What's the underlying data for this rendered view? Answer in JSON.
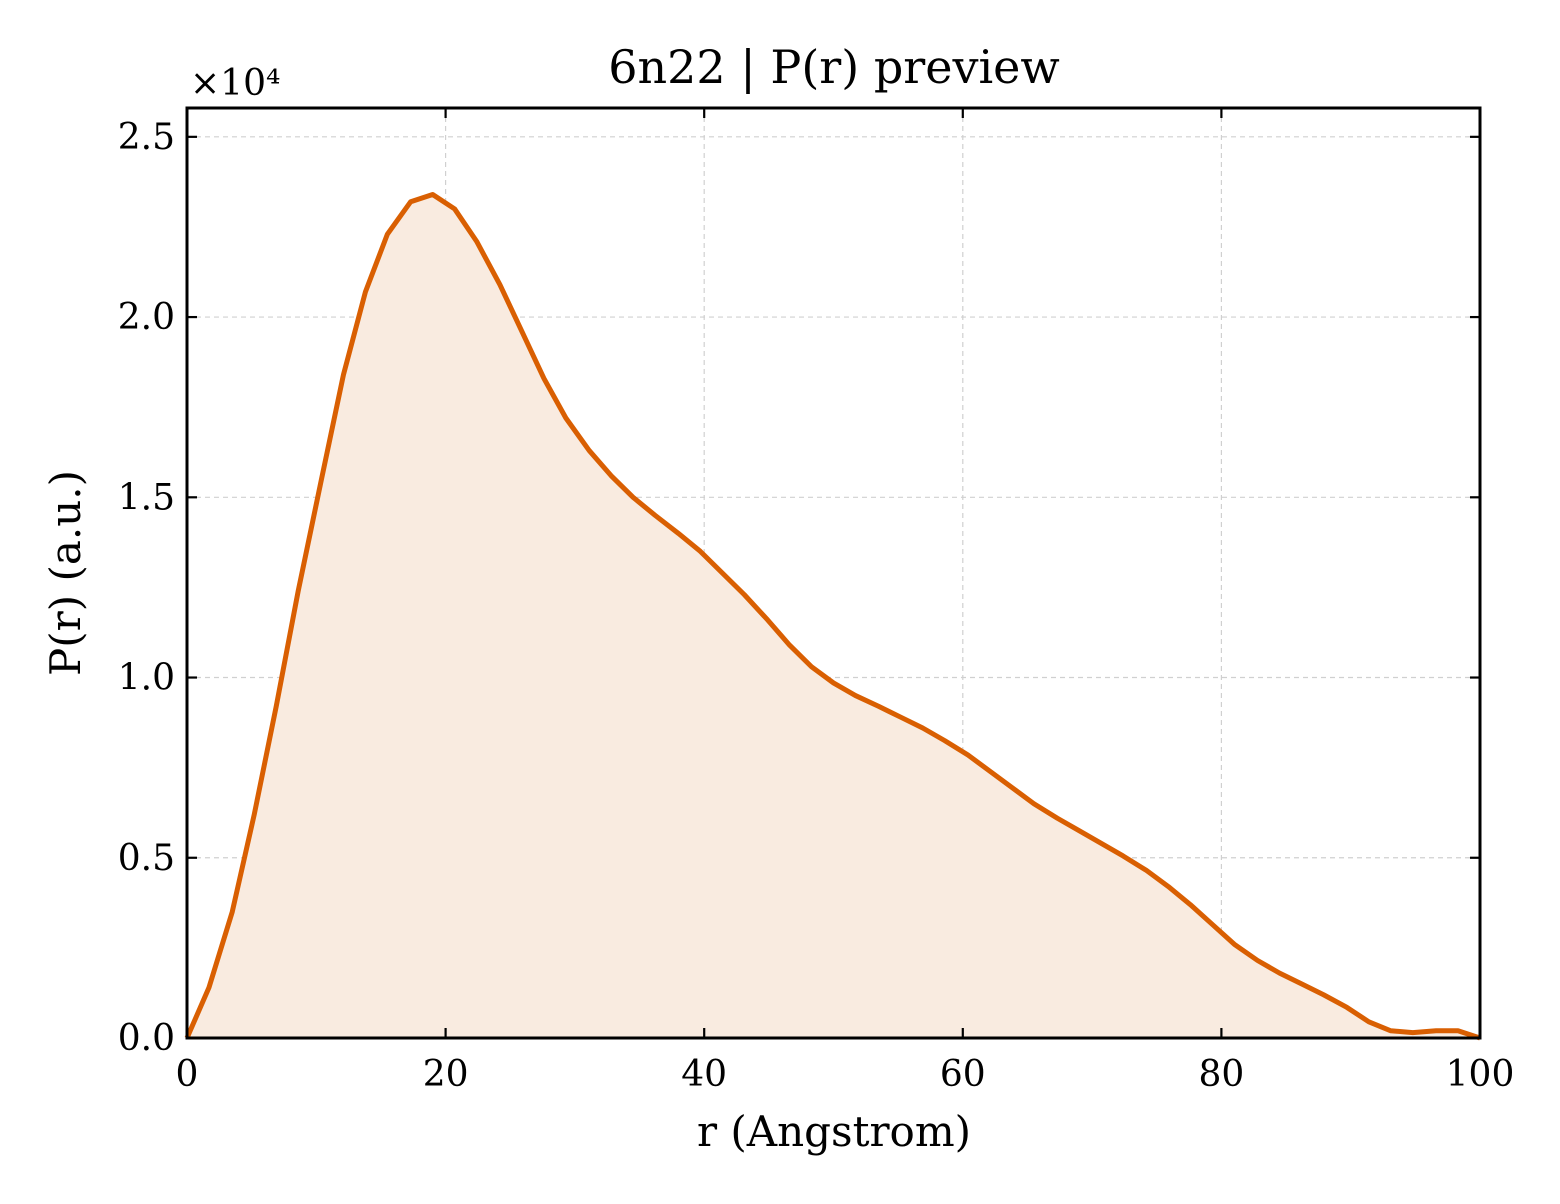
{
  "chart_data": {
    "type": "area",
    "title": "6n22 | P(r) preview",
    "xlabel": "r (Angstrom)",
    "ylabel": "P(r) (a.u.)",
    "y_multiplier_label": "×10⁴",
    "xlim": [
      0,
      100
    ],
    "ylim": [
      0,
      2.58
    ],
    "xticks": [
      0,
      20,
      40,
      60,
      80,
      100
    ],
    "xtick_labels": [
      "0",
      "20",
      "40",
      "60",
      "80",
      "100"
    ],
    "yticks": [
      0,
      0.5,
      1.0,
      1.5,
      2.0,
      2.5
    ],
    "ytick_labels": [
      "0.0",
      "0.5",
      "1.0",
      "1.5",
      "2.0",
      "2.5"
    ],
    "grid": true,
    "line_color": "#d95f02",
    "fill_color": "#f9ebe0",
    "series": [
      {
        "x": [
          0,
          1.7,
          3.5,
          5.2,
          6.9,
          8.6,
          10.4,
          12.1,
          13.8,
          15.5,
          17.3,
          19.0,
          20.7,
          22.4,
          24.2,
          25.9,
          27.6,
          29.3,
          31.1,
          32.8,
          34.5,
          36.2,
          38.0,
          39.7,
          41.4,
          43.1,
          44.9,
          46.6,
          48.3,
          50.0,
          51.7,
          53.5,
          55.2,
          56.9,
          58.6,
          60.4,
          62.1,
          63.8,
          65.5,
          67.3,
          69.0,
          70.7,
          72.4,
          74.2,
          75.9,
          77.6,
          79.3,
          81.0,
          82.8,
          84.5,
          86.2,
          87.9,
          89.7,
          91.4,
          93.1,
          94.8,
          96.6,
          98.3,
          100.0
        ],
        "values": [
          0.0,
          0.14,
          0.35,
          0.62,
          0.92,
          1.24,
          1.55,
          1.84,
          2.07,
          2.23,
          2.32,
          2.34,
          2.3,
          2.21,
          2.09,
          1.96,
          1.83,
          1.72,
          1.63,
          1.56,
          1.5,
          1.45,
          1.4,
          1.35,
          1.29,
          1.23,
          1.16,
          1.09,
          1.03,
          0.985,
          0.95,
          0.92,
          0.89,
          0.86,
          0.825,
          0.785,
          0.74,
          0.695,
          0.65,
          0.61,
          0.575,
          0.54,
          0.505,
          0.465,
          0.42,
          0.37,
          0.315,
          0.26,
          0.215,
          0.18,
          0.15,
          0.12,
          0.085,
          0.045,
          0.02,
          0.015,
          0.02,
          0.02,
          0.0
        ]
      }
    ]
  }
}
